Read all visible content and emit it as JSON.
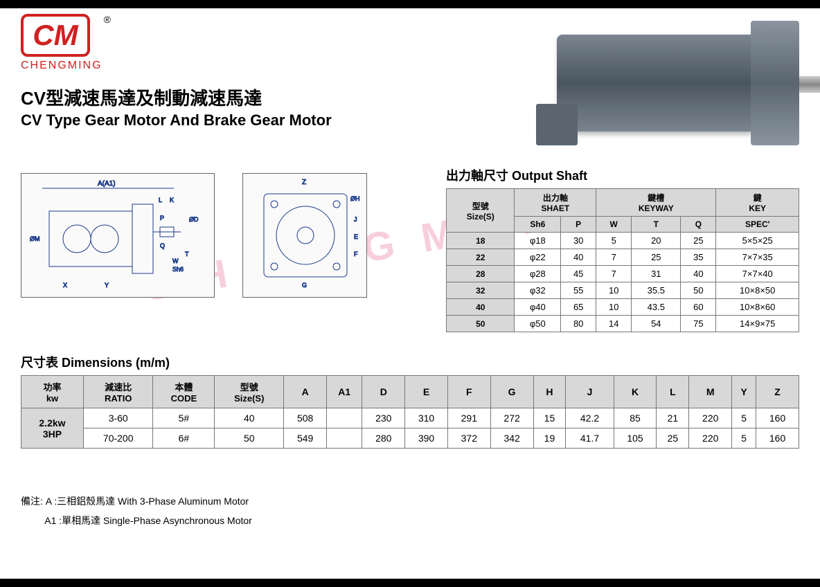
{
  "brand": {
    "logo_text": "CM",
    "registered": "®",
    "name": "CHENGMING",
    "primary_color": "#d02020"
  },
  "title": {
    "cn": "CV型減速馬達及制動減速馬達",
    "en": "CV Type Gear Motor And Brake Gear Motor"
  },
  "watermark_text": "CHENGMING",
  "diagram_labels": {
    "a_label": "A(A1)",
    "l": "L",
    "k": "K",
    "p": "P",
    "q": "Q",
    "sh6": "Sh6",
    "w": "W",
    "t": "T",
    "om": "ØM",
    "x": "X",
    "y": "Y",
    "od": "ØD",
    "oh": "ØH",
    "z": "Z",
    "e": "E",
    "f": "F",
    "g": "G",
    "j": "J"
  },
  "shaft_table": {
    "title": "出力軸尺寸 Output Shaft",
    "header_groups": [
      {
        "cn": "型號",
        "en": "Size(S)",
        "span": 1
      },
      {
        "cn": "出力軸",
        "en": "SHAET",
        "span": 2
      },
      {
        "cn": "鍵槽",
        "en": "KEYWAY",
        "span": 3
      },
      {
        "cn": "鍵",
        "en": "KEY",
        "span": 1
      }
    ],
    "sub_headers": [
      "Sh6",
      "P",
      "W",
      "T",
      "Q",
      "SPEC'"
    ],
    "rows": [
      {
        "size": "18",
        "sh6": "φ18",
        "p": "30",
        "w": "5",
        "t": "20",
        "q": "25",
        "spec": "5×5×25"
      },
      {
        "size": "22",
        "sh6": "φ22",
        "p": "40",
        "w": "7",
        "t": "25",
        "q": "35",
        "spec": "7×7×35"
      },
      {
        "size": "28",
        "sh6": "φ28",
        "p": "45",
        "w": "7",
        "t": "31",
        "q": "40",
        "spec": "7×7×40"
      },
      {
        "size": "32",
        "sh6": "φ32",
        "p": "55",
        "w": "10",
        "t": "35.5",
        "q": "50",
        "spec": "10×8×50"
      },
      {
        "size": "40",
        "sh6": "φ40",
        "p": "65",
        "w": "10",
        "t": "43.5",
        "q": "60",
        "spec": "10×8×60"
      },
      {
        "size": "50",
        "sh6": "φ50",
        "p": "80",
        "w": "14",
        "t": "54",
        "q": "75",
        "spec": "14×9×75"
      }
    ]
  },
  "dim_table": {
    "title": "尺寸表 Dimensions (m/m)",
    "headers": [
      {
        "cn": "功率",
        "en": "kw"
      },
      {
        "cn": "減速比",
        "en": "RATIO"
      },
      {
        "cn": "本體",
        "en": "CODE"
      },
      {
        "cn": "型號",
        "en": "Size(S)"
      },
      {
        "cn": "",
        "en": "A"
      },
      {
        "cn": "",
        "en": "A1"
      },
      {
        "cn": "",
        "en": "D"
      },
      {
        "cn": "",
        "en": "E"
      },
      {
        "cn": "",
        "en": "F"
      },
      {
        "cn": "",
        "en": "G"
      },
      {
        "cn": "",
        "en": "H"
      },
      {
        "cn": "",
        "en": "J"
      },
      {
        "cn": "",
        "en": "K"
      },
      {
        "cn": "",
        "en": "L"
      },
      {
        "cn": "",
        "en": "M"
      },
      {
        "cn": "",
        "en": "Y"
      },
      {
        "cn": "",
        "en": "Z"
      }
    ],
    "power_label": "2.2kw\n3HP",
    "rows": [
      {
        "ratio": "3-60",
        "code": "5#",
        "size": "40",
        "a": "508",
        "a1": "",
        "d": "230",
        "e": "310",
        "f": "291",
        "g": "272",
        "h": "15",
        "j": "42.2",
        "k": "85",
        "l": "21",
        "m": "220",
        "y": "5",
        "z": "160"
      },
      {
        "ratio": "70-200",
        "code": "6#",
        "size": "50",
        "a": "549",
        "a1": "",
        "d": "280",
        "e": "390",
        "f": "372",
        "g": "342",
        "h": "19",
        "j": "41.7",
        "k": "105",
        "l": "25",
        "m": "220",
        "y": "5",
        "z": "160"
      }
    ]
  },
  "notes": {
    "label": "備注:",
    "a": "A :三相鋁殼馬達 With 3-Phase Aluminum Motor",
    "a1": "A1 :單相馬達 Single-Phase Asynchronous Motor"
  }
}
